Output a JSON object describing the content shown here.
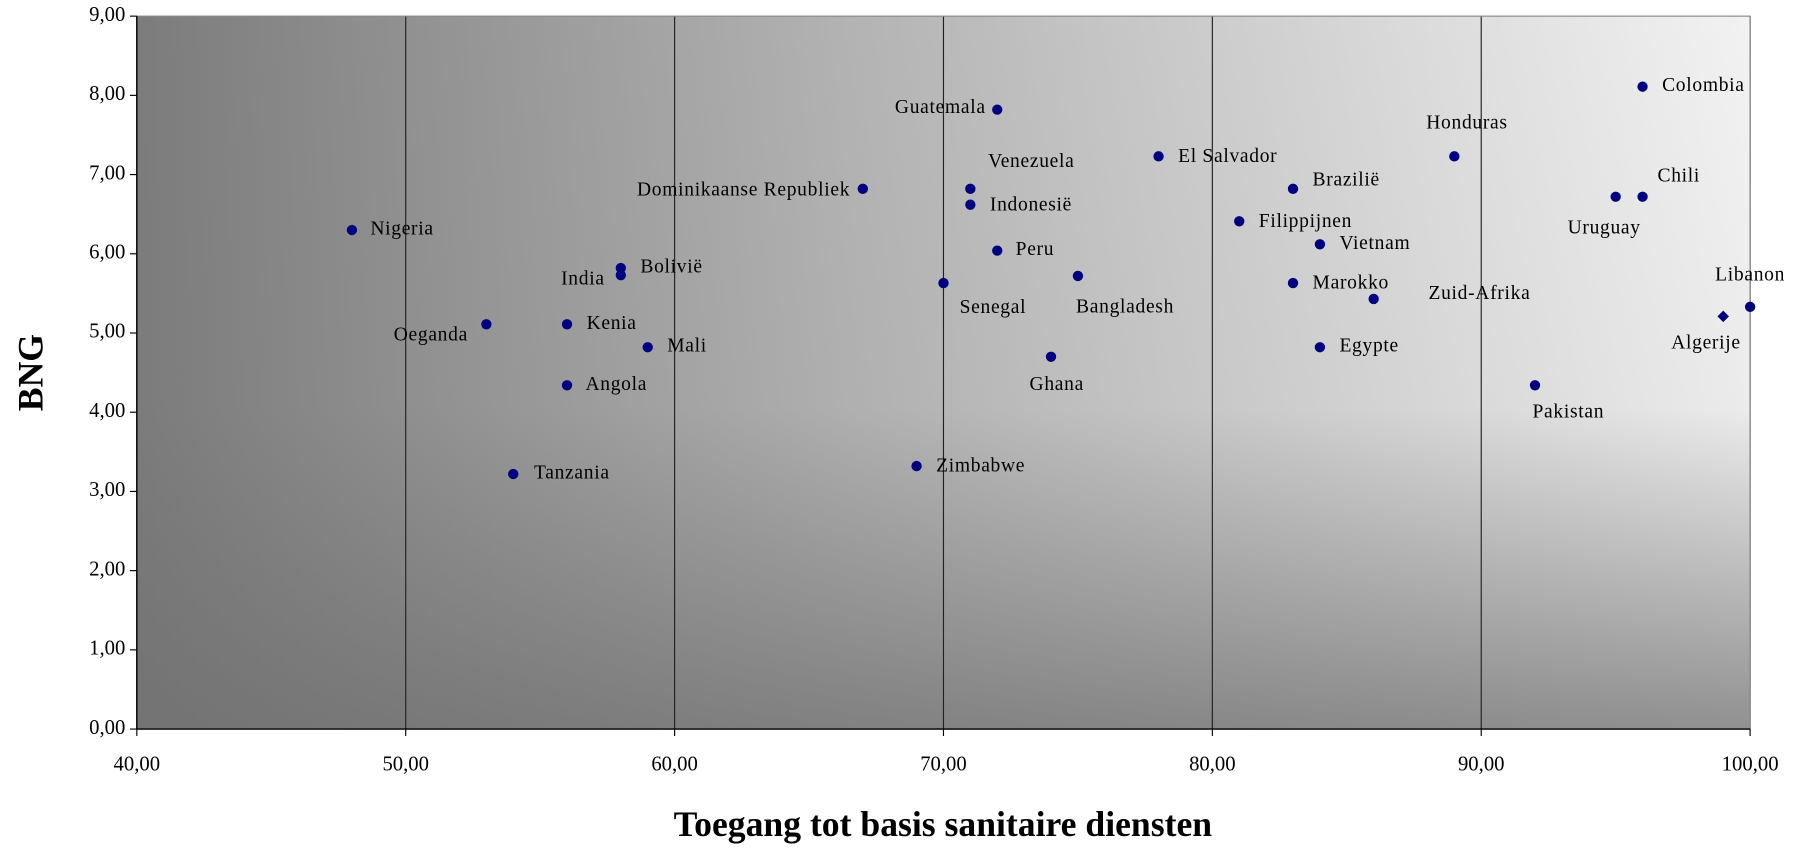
{
  "chart_data": {
    "type": "scatter",
    "xlabel": "Toegang tot basis sanitaire diensten",
    "ylabel": "BNG",
    "labels": [
      "Nigeria",
      "India",
      "Bolivië",
      "Oeganda",
      "Kenia",
      "Mali",
      "Angola",
      "Tanzania",
      "Dominikaanse Republiek",
      "Guatemala",
      "Venezuela",
      "Indonesië",
      "Peru",
      "Senegal",
      "Bangladesh",
      "Ghana",
      "Zimbabwe",
      "El Salvador",
      "Filippijnen",
      "Brazilië",
      "Vietnam",
      "Marokko",
      "Zuid-Afrika",
      "Egypte",
      "Honduras",
      "Pakistan",
      "Colombia",
      "Uruguay",
      "Chili",
      "Libanon",
      "Algerije"
    ],
    "x": [
      48,
      58,
      58,
      53,
      56,
      59,
      56,
      54,
      67,
      72,
      71,
      71,
      72,
      70,
      75,
      74,
      69,
      78,
      81,
      83,
      84,
      83,
      86,
      84,
      89,
      92,
      96,
      95,
      96,
      100,
      99
    ],
    "values": [
      6.3,
      5.73,
      5.82,
      5.11,
      5.11,
      4.82,
      4.34,
      3.22,
      6.82,
      7.82,
      6.82,
      6.62,
      6.04,
      5.63,
      5.72,
      4.7,
      3.32,
      7.23,
      6.41,
      6.82,
      6.12,
      5.63,
      5.43,
      4.82,
      7.23,
      4.34,
      8.11,
      6.72,
      6.72,
      5.33,
      5.21
    ],
    "color": "#000080",
    "xlim": [
      40,
      100
    ],
    "ylim": [
      0,
      9
    ],
    "xticks": [
      {
        "value": 40,
        "label": "40,00"
      },
      {
        "value": 50,
        "label": "50,00"
      },
      {
        "value": 60,
        "label": "60,00"
      },
      {
        "value": 70,
        "label": "70,00"
      },
      {
        "value": 80,
        "label": "80,00"
      },
      {
        "value": 90,
        "label": "90,00"
      },
      {
        "value": 100,
        "label": "100,00"
      }
    ],
    "yticks": [
      {
        "value": 0,
        "label": "0,00"
      },
      {
        "value": 1,
        "label": "1,00"
      },
      {
        "value": 2,
        "label": "2,00"
      },
      {
        "value": 3,
        "label": "3,00"
      },
      {
        "value": 4,
        "label": "4,00"
      },
      {
        "value": 5,
        "label": "5,00"
      },
      {
        "value": 6,
        "label": "6,00"
      },
      {
        "value": 7,
        "label": "7,00"
      },
      {
        "value": 8,
        "label": "8,00"
      },
      {
        "value": 9,
        "label": "9,00"
      }
    ],
    "grid": true
  }
}
